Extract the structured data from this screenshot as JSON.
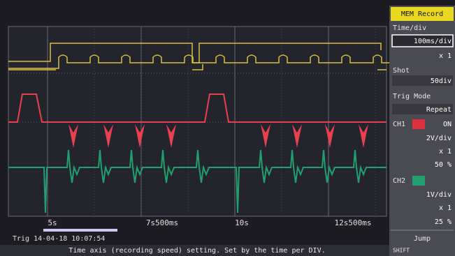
{
  "panel": {
    "title": "MEM Record",
    "time_div_label": "Time/div",
    "time_div_value": "100ms/div",
    "time_mag": "x 1",
    "shot_label": "Shot",
    "shot_value": "50div",
    "trig_mode_label": "Trig Mode",
    "trig_mode_value": "Repeat",
    "ch1_label": "CH1",
    "ch1_state": "ON",
    "ch1_range": "2V/div",
    "ch1_mag": "x 1",
    "ch1_pos": "50 %",
    "ch2_label": "CH2",
    "ch2_range": "1V/div",
    "ch2_mag": "x 1",
    "ch2_pos": "25 %",
    "jump": "Jump",
    "shift": "SHIFT"
  },
  "time_labels": [
    "5s",
    "7s500ms",
    "10s",
    "12s500ms"
  ],
  "trigger_info": "Trig 14-04-18 10:07:54",
  "help_text": "Time axis (recording speed) setting. Set by the time per DIV."
}
